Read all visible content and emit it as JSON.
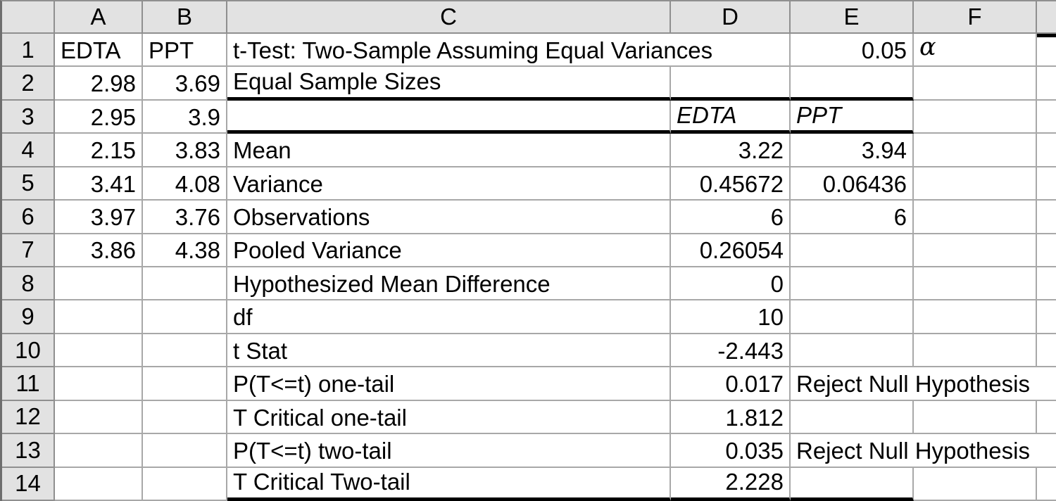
{
  "sheet": {
    "column_headers": [
      "A",
      "B",
      "C",
      "D",
      "E",
      "F",
      ""
    ],
    "row_headers": [
      "1",
      "2",
      "3",
      "4",
      "5",
      "6",
      "7",
      "8",
      "9",
      "10",
      "11",
      "12",
      "13",
      "14"
    ],
    "cells": [
      {
        "ref": "A1",
        "text": "EDTA"
      },
      {
        "ref": "B1",
        "text": "PPT"
      },
      {
        "ref": "C1",
        "text": "t-Test: Two-Sample Assuming Equal Variances"
      },
      {
        "ref": "E1",
        "text": "0.05"
      },
      {
        "ref": "F1",
        "text": "α"
      },
      {
        "ref": "A2",
        "text": "2.98"
      },
      {
        "ref": "B2",
        "text": "3.69"
      },
      {
        "ref": "C2",
        "text": "Equal Sample Sizes"
      },
      {
        "ref": "A3",
        "text": "2.95"
      },
      {
        "ref": "B3",
        "text": "3.9"
      },
      {
        "ref": "D3",
        "text": "EDTA"
      },
      {
        "ref": "E3",
        "text": "PPT"
      },
      {
        "ref": "A4",
        "text": "2.15"
      },
      {
        "ref": "B4",
        "text": "3.83"
      },
      {
        "ref": "C4",
        "text": "Mean"
      },
      {
        "ref": "D4",
        "text": "3.22"
      },
      {
        "ref": "E4",
        "text": "3.94"
      },
      {
        "ref": "A5",
        "text": "3.41"
      },
      {
        "ref": "B5",
        "text": "4.08"
      },
      {
        "ref": "C5",
        "text": "Variance"
      },
      {
        "ref": "D5",
        "text": "0.45672"
      },
      {
        "ref": "E5",
        "text": "0.06436"
      },
      {
        "ref": "A6",
        "text": "3.97"
      },
      {
        "ref": "B6",
        "text": "3.76"
      },
      {
        "ref": "C6",
        "text": "Observations"
      },
      {
        "ref": "D6",
        "text": "6"
      },
      {
        "ref": "E6",
        "text": "6"
      },
      {
        "ref": "A7",
        "text": "3.86"
      },
      {
        "ref": "B7",
        "text": "4.38"
      },
      {
        "ref": "C7",
        "text": "Pooled Variance"
      },
      {
        "ref": "D7",
        "text": "0.26054"
      },
      {
        "ref": "C8",
        "text": "Hypothesized Mean Difference"
      },
      {
        "ref": "D8",
        "text": "0"
      },
      {
        "ref": "C9",
        "text": "df"
      },
      {
        "ref": "D9",
        "text": "10"
      },
      {
        "ref": "C10",
        "text": "t Stat"
      },
      {
        "ref": "D10",
        "text": "-2.443"
      },
      {
        "ref": "C11",
        "text": "P(T<=t) one-tail"
      },
      {
        "ref": "D11",
        "text": "0.017"
      },
      {
        "ref": "E11",
        "text": "Reject Null Hypothesis"
      },
      {
        "ref": "C12",
        "text": "T Critical one-tail"
      },
      {
        "ref": "D12",
        "text": "1.812"
      },
      {
        "ref": "C13",
        "text": "P(T<=t) two-tail"
      },
      {
        "ref": "D13",
        "text": "0.035"
      },
      {
        "ref": "E13",
        "text": "Reject Null Hypothesis"
      },
      {
        "ref": "C14",
        "text": "T Critical Two-tail"
      },
      {
        "ref": "D14",
        "text": "2.228"
      }
    ]
  }
}
